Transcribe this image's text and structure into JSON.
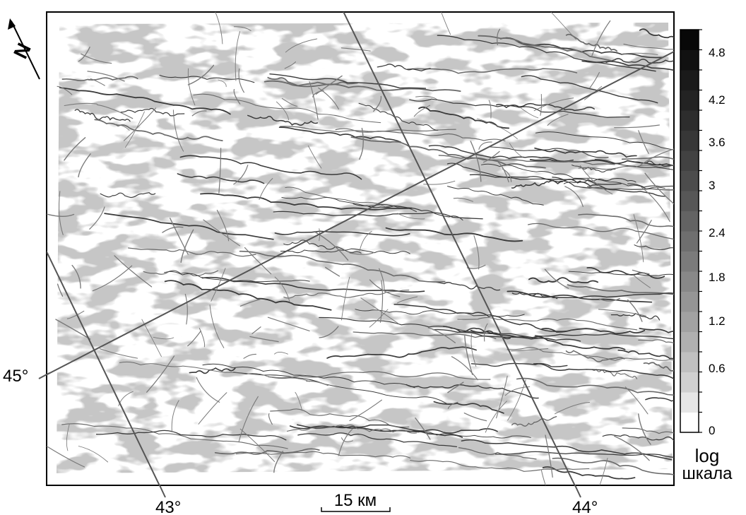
{
  "map": {
    "north_label": "N",
    "coordinate_labels": {
      "lat_45": "45°",
      "lon_43": "43°",
      "lon_44": "44°"
    },
    "scale_bar": {
      "label": "15 км"
    },
    "colors": {
      "background": "#ffffff",
      "base_fill": "#c6c6c6",
      "light_fill": "#e0e0e0",
      "ridge_line": "#3a3a3a",
      "graticule": "#555555"
    }
  },
  "legend": {
    "ticks": [
      "4.8",
      "4.2",
      "3.6",
      "3",
      "2.4",
      "1.8",
      "1.2",
      "0.6",
      "0"
    ],
    "shades": [
      "#ffffff",
      "#e6e6e6",
      "#d0d0d0",
      "#c0c0c0",
      "#b0b0b0",
      "#a2a2a2",
      "#959595",
      "#888888",
      "#7b7b7b",
      "#6f6f6f",
      "#636363",
      "#575757",
      "#4c4c4c",
      "#424242",
      "#373737",
      "#2d2d2d",
      "#232323",
      "#1a1a1a",
      "#111111",
      "#080808"
    ],
    "caption_line1": "log",
    "caption_line2": "шкала"
  }
}
